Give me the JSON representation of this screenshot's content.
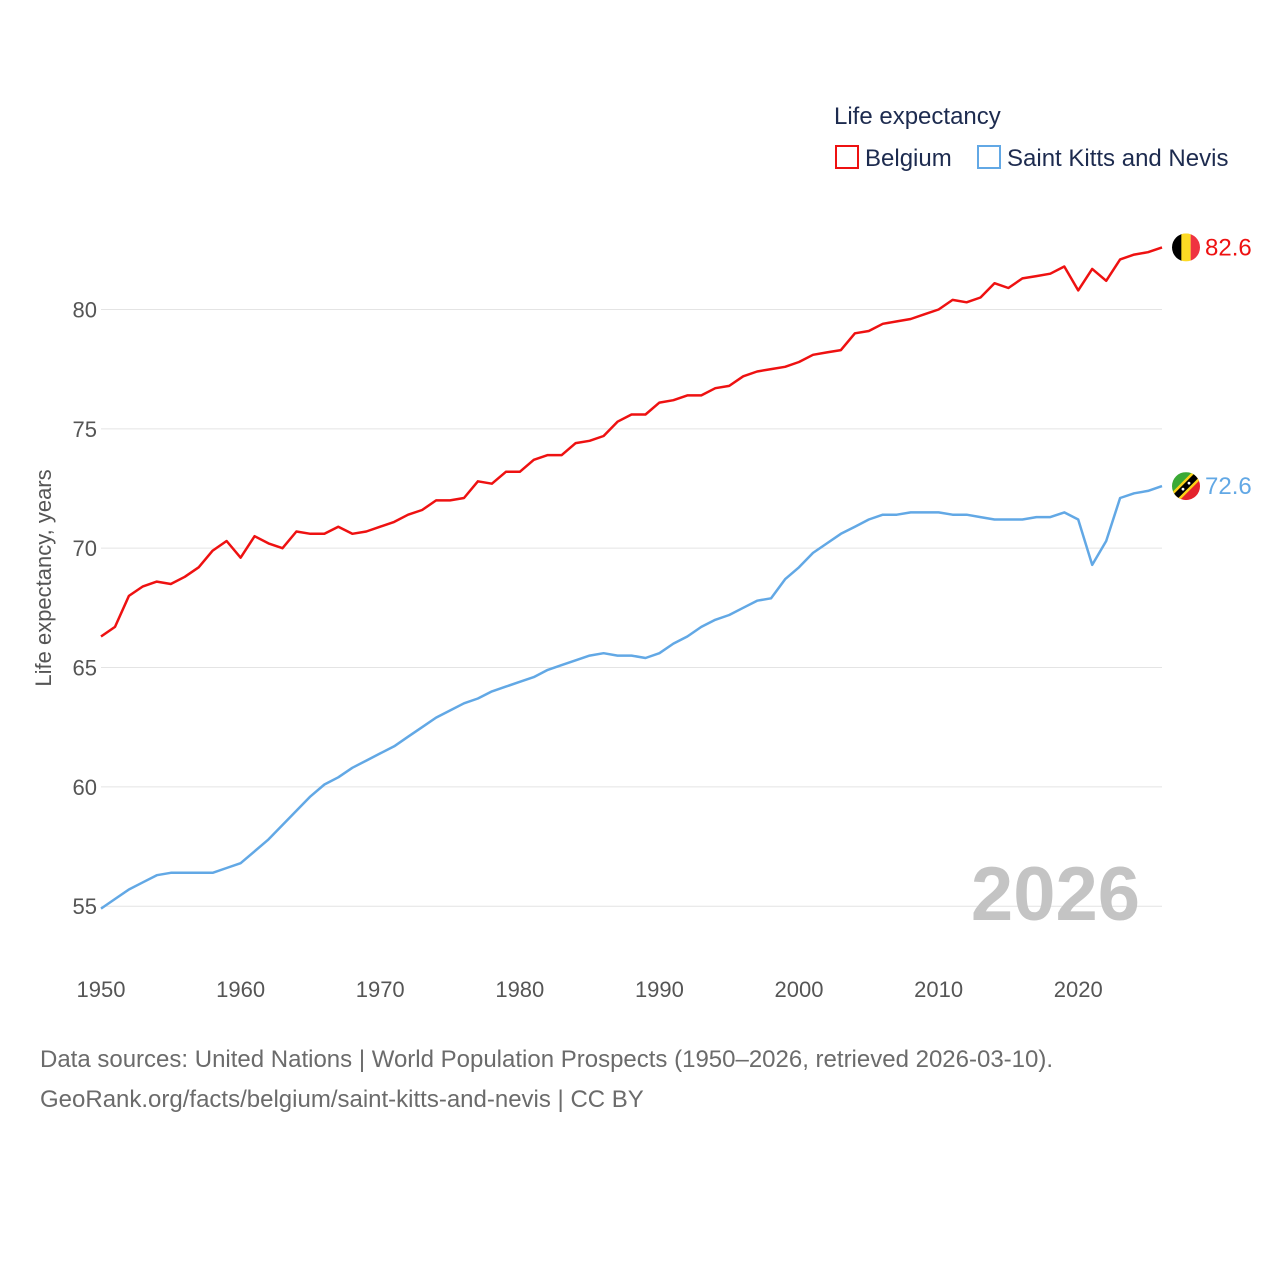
{
  "colors": {
    "belgium": "#ee1111",
    "stkitts": "#62a8e5",
    "grid": "#e4e4e4"
  },
  "legend": {
    "title": "Life expectancy",
    "items": [
      {
        "label": "Belgium",
        "color": "#ee1111"
      },
      {
        "label": "Saint Kitts and Nevis",
        "color": "#62a8e5"
      }
    ]
  },
  "watermark_year": "2026",
  "source": {
    "line1": "Data sources: United Nations | World Population Prospects (1950–2026, retrieved 2026-03-10).",
    "line2": "GeoRank.org/facts/belgium/saint-kitts-and-nevis | CC BY"
  },
  "chart_data": {
    "type": "line",
    "title": "Life expectancy",
    "xlabel": "",
    "ylabel": "Life expectancy, years",
    "xlim": [
      1950,
      2026
    ],
    "ylim": [
      53.5,
      84
    ],
    "x_ticks": [
      1950,
      1960,
      1970,
      1980,
      1990,
      2000,
      2010,
      2020
    ],
    "y_ticks": [
      55,
      60,
      65,
      70,
      75,
      80
    ],
    "grid": true,
    "legend_position": "top-right",
    "x": [
      1950,
      1951,
      1952,
      1953,
      1954,
      1955,
      1956,
      1957,
      1958,
      1959,
      1960,
      1961,
      1962,
      1963,
      1964,
      1965,
      1966,
      1967,
      1968,
      1969,
      1970,
      1971,
      1972,
      1973,
      1974,
      1975,
      1976,
      1977,
      1978,
      1979,
      1980,
      1981,
      1982,
      1983,
      1984,
      1985,
      1986,
      1987,
      1988,
      1989,
      1990,
      1991,
      1992,
      1993,
      1994,
      1995,
      1996,
      1997,
      1998,
      1999,
      2000,
      2001,
      2002,
      2003,
      2004,
      2005,
      2006,
      2007,
      2008,
      2009,
      2010,
      2011,
      2012,
      2013,
      2014,
      2015,
      2016,
      2017,
      2018,
      2019,
      2020,
      2021,
      2022,
      2023,
      2024,
      2025,
      2026
    ],
    "series": [
      {
        "name": "Belgium",
        "end_label": "82.6",
        "values": [
          66.3,
          66.7,
          68.0,
          68.4,
          68.6,
          68.5,
          68.8,
          69.2,
          69.9,
          70.3,
          69.6,
          70.5,
          70.2,
          70.0,
          70.7,
          70.6,
          70.6,
          70.9,
          70.6,
          70.7,
          70.9,
          71.1,
          71.4,
          71.6,
          72.0,
          72.0,
          72.1,
          72.8,
          72.7,
          73.2,
          73.2,
          73.7,
          73.9,
          73.9,
          74.4,
          74.5,
          74.7,
          75.3,
          75.6,
          75.6,
          76.1,
          76.2,
          76.4,
          76.4,
          76.7,
          76.8,
          77.2,
          77.4,
          77.5,
          77.6,
          77.8,
          78.1,
          78.2,
          78.3,
          79.0,
          79.1,
          79.4,
          79.5,
          79.6,
          79.8,
          80.0,
          80.4,
          80.3,
          80.5,
          81.1,
          80.9,
          81.3,
          81.4,
          81.5,
          81.8,
          80.8,
          81.7,
          81.2,
          82.1,
          82.3,
          82.4,
          82.6
        ]
      },
      {
        "name": "Saint Kitts and Nevis",
        "end_label": "72.6",
        "values": [
          54.9,
          55.3,
          55.7,
          56.0,
          56.3,
          56.4,
          56.4,
          56.4,
          56.4,
          56.6,
          56.8,
          57.3,
          57.8,
          58.4,
          59.0,
          59.6,
          60.1,
          60.4,
          60.8,
          61.1,
          61.4,
          61.7,
          62.1,
          62.5,
          62.9,
          63.2,
          63.5,
          63.7,
          64.0,
          64.2,
          64.4,
          64.6,
          64.9,
          65.1,
          65.3,
          65.5,
          65.6,
          65.5,
          65.5,
          65.4,
          65.6,
          66.0,
          66.3,
          66.7,
          67.0,
          67.2,
          67.5,
          67.8,
          67.9,
          68.7,
          69.2,
          69.8,
          70.2,
          70.6,
          70.9,
          71.2,
          71.4,
          71.4,
          71.5,
          71.5,
          71.5,
          71.4,
          71.4,
          71.3,
          71.2,
          71.2,
          71.2,
          71.3,
          71.3,
          71.5,
          71.2,
          69.3,
          70.3,
          72.1,
          72.3,
          72.4,
          72.6
        ]
      }
    ]
  }
}
